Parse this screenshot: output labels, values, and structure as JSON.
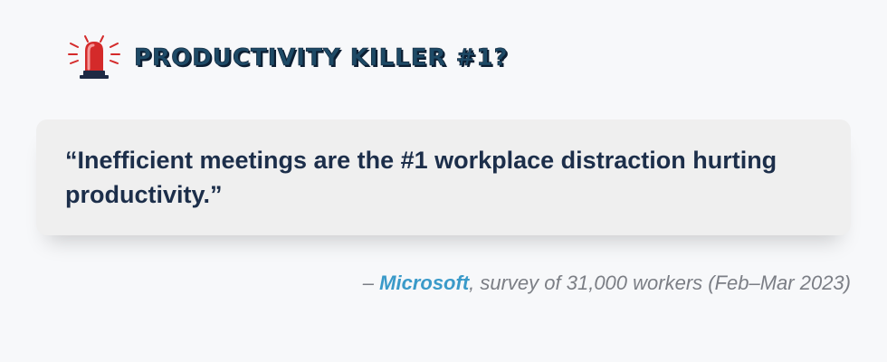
{
  "header": {
    "title": "PRODUCTIVITY KILLER #1?",
    "icon": "siren-icon"
  },
  "quote": {
    "text": "“Inefficient meetings are the #1 workplace distraction hurting productivity.”"
  },
  "attribution": {
    "dash": "– ",
    "source": "Microsoft",
    "detail": ", survey of 31,000 workers (Feb–Mar 2023)"
  },
  "colors": {
    "background": "#f7f8fa",
    "title": "#1e4a66",
    "quote_text": "#1c2e4a",
    "source_accent": "#3a9ac9",
    "siren_red": "#d42a2a"
  }
}
